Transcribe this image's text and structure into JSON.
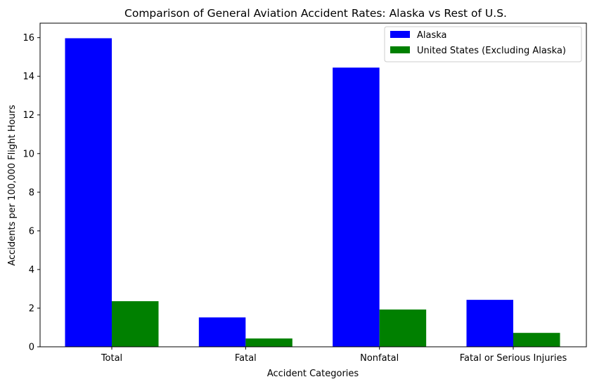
{
  "chart_data": {
    "type": "bar",
    "title": "Comparison of General Aviation Accident Rates: Alaska vs Rest of U.S.",
    "xlabel": "Accident Categories",
    "ylabel": "Accidents per 100,000 Flight Hours",
    "categories": [
      "Total",
      "Fatal",
      "Nonfatal",
      "Fatal or Serious Injuries"
    ],
    "series": [
      {
        "name": "Alaska",
        "color": "#0000ff",
        "values": [
          15.97,
          1.52,
          14.45,
          2.43
        ]
      },
      {
        "name": "United States (Excluding Alaska)",
        "color": "#008000",
        "values": [
          2.36,
          0.43,
          1.93,
          0.72
        ]
      }
    ],
    "ylim": [
      0,
      16.75
    ],
    "yticks": [
      0,
      2,
      4,
      6,
      8,
      10,
      12,
      14,
      16
    ],
    "grid": false,
    "legend_position": "top-right"
  }
}
